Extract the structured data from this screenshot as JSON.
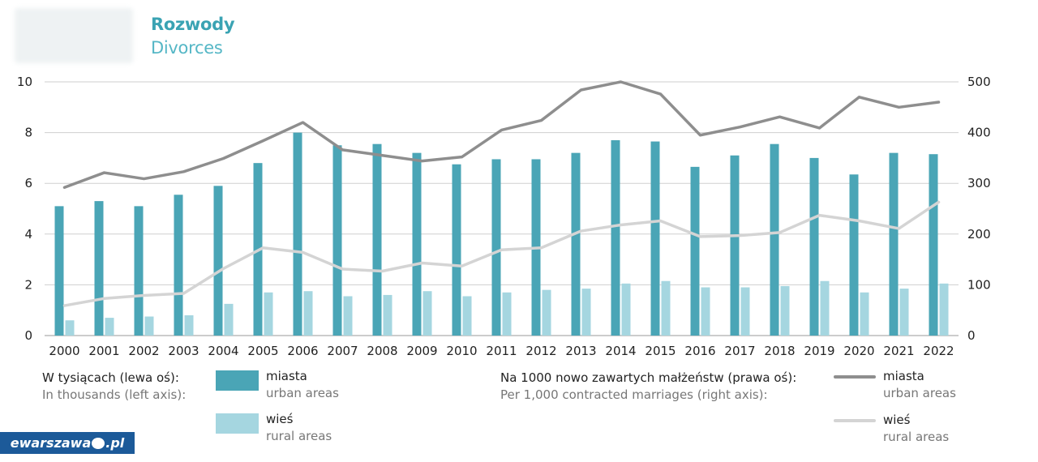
{
  "header": {
    "title": "Rozwody",
    "subtitle": "Divorces"
  },
  "colors": {
    "urban_bar": "#4aa5b6",
    "rural_bar": "#a5d6e0",
    "urban_line": "#8e8e8e",
    "rural_line": "#d4d4d4",
    "grid": "#cfcfcf"
  },
  "chart_data": {
    "type": "bar",
    "title": "Rozwody / Divorces",
    "categories": [
      "2000",
      "2001",
      "2002",
      "2003",
      "2004",
      "2005",
      "2006",
      "2007",
      "2008",
      "2009",
      "2010",
      "2011",
      "2012",
      "2013",
      "2014",
      "2015",
      "2016",
      "2017",
      "2018",
      "2019",
      "2020",
      "2021",
      "2022"
    ],
    "left_axis": {
      "label": "W tysiącach / In thousands",
      "ylim": [
        0,
        10
      ],
      "ticks": [
        0,
        2,
        4,
        6,
        8,
        10
      ]
    },
    "right_axis": {
      "label": "Na 1000 nowo zawartych małżeństw / Per 1,000 contracted marriages",
      "ylim": [
        0,
        500
      ],
      "ticks": [
        0,
        100,
        200,
        300,
        400,
        500
      ]
    },
    "bar_series": [
      {
        "name": "miasta / urban areas",
        "axis": "left",
        "values": [
          5.1,
          5.3,
          5.1,
          5.55,
          5.9,
          6.8,
          8.0,
          7.5,
          7.55,
          7.2,
          6.75,
          6.95,
          6.95,
          7.2,
          7.7,
          7.65,
          6.65,
          7.1,
          7.55,
          7.0,
          6.35,
          7.2,
          7.15
        ]
      },
      {
        "name": "wieś / rural areas",
        "axis": "left",
        "values": [
          0.6,
          0.7,
          0.75,
          0.8,
          1.25,
          1.7,
          1.75,
          1.55,
          1.6,
          1.75,
          1.55,
          1.7,
          1.8,
          1.85,
          2.05,
          2.15,
          1.9,
          1.9,
          1.95,
          2.15,
          1.7,
          1.85,
          2.05
        ]
      }
    ],
    "line_series": [
      {
        "name": "miasta / urban areas",
        "axis": "right",
        "values": [
          292,
          321,
          309,
          323,
          349,
          384,
          420,
          366,
          355,
          344,
          352,
          405,
          424,
          484,
          500,
          476,
          395,
          411,
          431,
          409,
          470,
          450,
          460
        ]
      },
      {
        "name": "wieś / rural areas",
        "axis": "right",
        "values": [
          59,
          73,
          79,
          83,
          132,
          173,
          164,
          131,
          127,
          143,
          137,
          169,
          173,
          206,
          218,
          226,
          195,
          197,
          203,
          237,
          226,
          211,
          263
        ]
      }
    ]
  },
  "legend": {
    "left": {
      "pl": "W tysiącach (lewa oś):",
      "en": "In thousands (left axis):"
    },
    "right": {
      "pl": "Na 1000 nowo zawartych małżeństw (prawa oś):",
      "en": "Per 1,000 contracted marriages (right axis):"
    },
    "urban": {
      "pl": "miasta",
      "en": "urban areas"
    },
    "rural": {
      "pl": "wieś",
      "en": "rural areas"
    }
  },
  "watermark": {
    "left": "ewarszawa",
    "right": "pl"
  }
}
